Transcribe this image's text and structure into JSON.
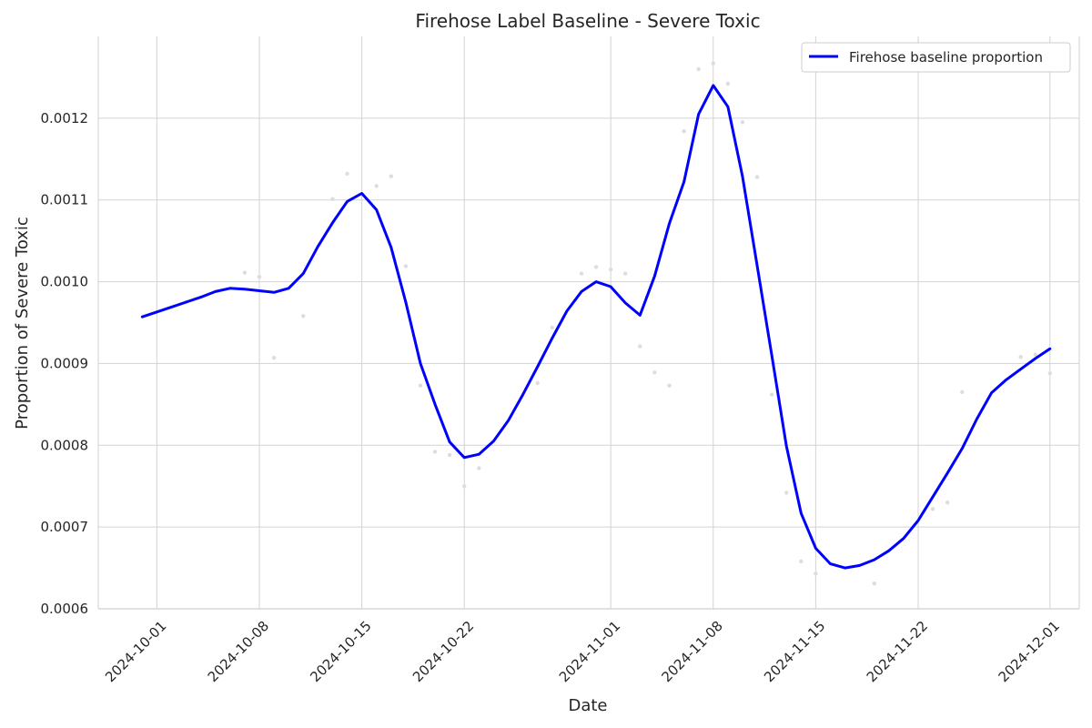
{
  "chart_data": {
    "type": "line",
    "title": "Firehose Label Baseline - Severe Toxic",
    "xlabel": "Date",
    "ylabel": "Proportion of Severe Toxic",
    "x_ticks": [
      "2024-10-01",
      "2024-10-08",
      "2024-10-15",
      "2024-10-22",
      "2024-11-01",
      "2024-11-08",
      "2024-11-15",
      "2024-11-22",
      "2024-12-01"
    ],
    "y_ticks": [
      "0.0006",
      "0.0007",
      "0.0008",
      "0.0009",
      "0.0010",
      "0.0011",
      "0.0012"
    ],
    "xlim": [
      "2024-09-27",
      "2024-12-03"
    ],
    "ylim": [
      0.0006,
      0.0013
    ],
    "grid": true,
    "legend_position": "top-right",
    "colors": {
      "line": "#0000ff",
      "scatter": "#dddddd",
      "grid": "#d3d3d3"
    },
    "series": [
      {
        "name": "Firehose baseline proportion",
        "x": [
          "2024-09-30",
          "2024-10-01",
          "2024-10-02",
          "2024-10-03",
          "2024-10-04",
          "2024-10-05",
          "2024-10-06",
          "2024-10-07",
          "2024-10-08",
          "2024-10-09",
          "2024-10-10",
          "2024-10-11",
          "2024-10-12",
          "2024-10-13",
          "2024-10-14",
          "2024-10-15",
          "2024-10-16",
          "2024-10-17",
          "2024-10-18",
          "2024-10-19",
          "2024-10-20",
          "2024-10-21",
          "2024-10-22",
          "2024-10-23",
          "2024-10-24",
          "2024-10-25",
          "2024-10-26",
          "2024-10-27",
          "2024-10-28",
          "2024-10-29",
          "2024-10-30",
          "2024-10-31",
          "2024-11-01",
          "2024-11-02",
          "2024-11-03",
          "2024-11-04",
          "2024-11-05",
          "2024-11-06",
          "2024-11-07",
          "2024-11-08",
          "2024-11-09",
          "2024-11-10",
          "2024-11-11",
          "2024-11-12",
          "2024-11-13",
          "2024-11-14",
          "2024-11-15",
          "2024-11-16",
          "2024-11-17",
          "2024-11-18",
          "2024-11-19",
          "2024-11-20",
          "2024-11-21",
          "2024-11-22",
          "2024-11-23",
          "2024-11-24",
          "2024-11-25",
          "2024-11-26",
          "2024-11-27",
          "2024-11-28",
          "2024-11-29",
          "2024-11-30",
          "2024-12-01"
        ],
        "values": [
          0.000957,
          0.000963,
          0.000969,
          0.000975,
          0.000981,
          0.000988,
          0.000992,
          0.000991,
          0.000989,
          0.000987,
          0.000992,
          0.00101,
          0.001043,
          0.001072,
          0.001098,
          0.001108,
          0.001088,
          0.001042,
          0.000975,
          0.0009,
          0.00085,
          0.000804,
          0.000785,
          0.000789,
          0.000805,
          0.00083,
          0.000862,
          0.000896,
          0.000931,
          0.000964,
          0.000988,
          0.001,
          0.000994,
          0.000974,
          0.000959,
          0.001007,
          0.001071,
          0.001122,
          0.001205,
          0.00124,
          0.001214,
          0.001129,
          0.00102,
          0.00091,
          0.000799,
          0.000717,
          0.000674,
          0.000655,
          0.00065,
          0.000653,
          0.00066,
          0.000671,
          0.000686,
          0.000708,
          0.000737,
          0.000766,
          0.000796,
          0.000832,
          0.000864,
          0.00088,
          0.000893,
          0.000906,
          0.000918
        ]
      }
    ],
    "scatter_points": {
      "x": [
        "2024-10-03",
        "2024-10-07",
        "2024-10-08",
        "2024-10-09",
        "2024-10-11",
        "2024-10-13",
        "2024-10-14",
        "2024-10-16",
        "2024-10-17",
        "2024-10-18",
        "2024-10-19",
        "2024-10-20",
        "2024-10-21",
        "2024-10-22",
        "2024-10-23",
        "2024-10-27",
        "2024-10-28",
        "2024-10-30",
        "2024-10-31",
        "2024-11-01",
        "2024-11-02",
        "2024-11-03",
        "2024-11-04",
        "2024-11-05",
        "2024-11-06",
        "2024-11-07",
        "2024-11-08",
        "2024-11-09",
        "2024-11-10",
        "2024-11-11",
        "2024-11-12",
        "2024-11-13",
        "2024-11-14",
        "2024-11-15",
        "2024-11-19",
        "2024-11-23",
        "2024-11-24",
        "2024-11-25",
        "2024-11-29",
        "2024-11-30",
        "2024-12-01"
      ],
      "values": [
        0.000975,
        0.001011,
        0.001006,
        0.000907,
        0.000958,
        0.001101,
        0.001132,
        0.001117,
        0.001129,
        0.001019,
        0.000873,
        0.000792,
        0.000788,
        0.00075,
        0.000772,
        0.000876,
        0.000944,
        0.00101,
        0.001018,
        0.001015,
        0.00101,
        0.000921,
        0.000889,
        0.000873,
        0.001184,
        0.00126,
        0.001267,
        0.001242,
        0.001195,
        0.001128,
        0.000862,
        0.000742,
        0.000658,
        0.000643,
        0.000631,
        0.000722,
        0.00073,
        0.000865,
        0.000908,
        0.000911,
        0.000888
      ]
    }
  }
}
